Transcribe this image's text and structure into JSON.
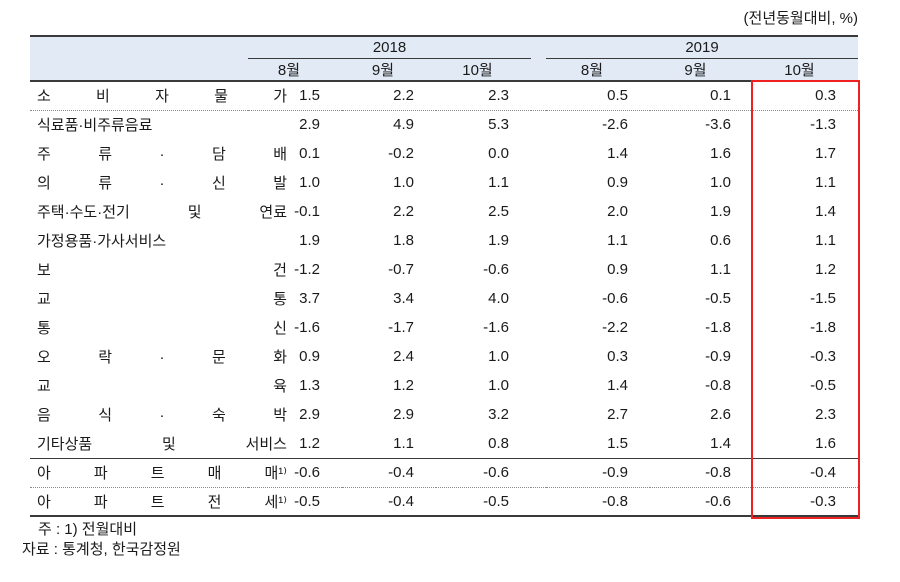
{
  "caption": "(전년동월대비, %)",
  "colors": {
    "header_bg": "#e2eaf5",
    "line_dark": "#3a3a3a",
    "highlight_border": "#ee2222"
  },
  "table": {
    "year_groups": [
      {
        "label": "2018"
      },
      {
        "label": "2019"
      }
    ],
    "month_headers": [
      "8월",
      "9월",
      "10월",
      "8월",
      "9월",
      "10월"
    ],
    "highlighted_column": "2019 10월",
    "rows": [
      {
        "name": "소 비 자 물 가",
        "group": "cpi",
        "values": [
          "1.5",
          "2.2",
          "2.3",
          "0.5",
          "0.1",
          "0.3"
        ]
      },
      {
        "name": "식료품·비주류음료",
        "group": "cpi",
        "values": [
          "2.9",
          "4.9",
          "5.3",
          "-2.6",
          "-3.6",
          "-1.3"
        ]
      },
      {
        "name": "주 류 · 담 배",
        "group": "cpi",
        "values": [
          "0.1",
          "-0.2",
          "0.0",
          "1.4",
          "1.6",
          "1.7"
        ]
      },
      {
        "name": "의 류 · 신 발",
        "group": "cpi",
        "values": [
          "1.0",
          "1.0",
          "1.1",
          "0.9",
          "1.0",
          "1.1"
        ]
      },
      {
        "name": "주택·수도·전기 및 연료",
        "group": "cpi",
        "values": [
          "-0.1",
          "2.2",
          "2.5",
          "2.0",
          "1.9",
          "1.4"
        ]
      },
      {
        "name": "가정용품·가사서비스",
        "group": "cpi",
        "values": [
          "1.9",
          "1.8",
          "1.9",
          "1.1",
          "0.6",
          "1.1"
        ]
      },
      {
        "name": "보 건",
        "group": "cpi",
        "values": [
          "-1.2",
          "-0.7",
          "-0.6",
          "0.9",
          "1.1",
          "1.2"
        ]
      },
      {
        "name": "교 통",
        "group": "cpi",
        "values": [
          "3.7",
          "3.4",
          "4.0",
          "-0.6",
          "-0.5",
          "-1.5"
        ]
      },
      {
        "name": "통 신",
        "group": "cpi",
        "values": [
          "-1.6",
          "-1.7",
          "-1.6",
          "-2.2",
          "-1.8",
          "-1.8"
        ]
      },
      {
        "name": "오 락 · 문 화",
        "group": "cpi",
        "values": [
          "0.9",
          "2.4",
          "1.0",
          "0.3",
          "-0.9",
          "-0.3"
        ]
      },
      {
        "name": "교 육",
        "group": "cpi",
        "values": [
          "1.3",
          "1.2",
          "1.0",
          "1.4",
          "-0.8",
          "-0.5"
        ]
      },
      {
        "name": "음 식 · 숙 박",
        "group": "cpi",
        "values": [
          "2.9",
          "2.9",
          "3.2",
          "2.7",
          "2.6",
          "2.3"
        ]
      },
      {
        "name": "기타상품 및 서비스",
        "group": "cpi",
        "values": [
          "1.2",
          "1.1",
          "0.8",
          "1.5",
          "1.4",
          "1.6"
        ]
      },
      {
        "name": "아 파 트 매 매¹⁾",
        "group": "apt",
        "values": [
          "-0.6",
          "-0.4",
          "-0.6",
          "-0.9",
          "-0.8",
          "-0.4"
        ]
      },
      {
        "name": "아 파 트 전 세¹⁾",
        "group": "apt",
        "values": [
          "-0.5",
          "-0.4",
          "-0.5",
          "-0.8",
          "-0.6",
          "-0.3"
        ]
      }
    ]
  },
  "footnotes": [
    "주 : 1) 전월대비",
    "자료 : 통계청, 한국감정원"
  ]
}
